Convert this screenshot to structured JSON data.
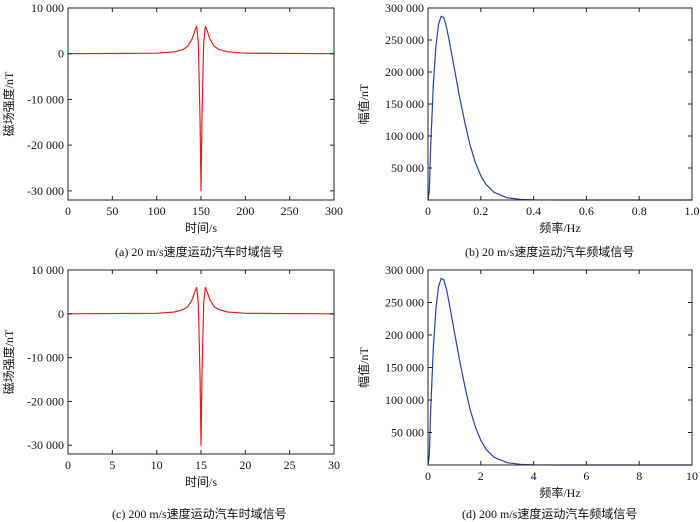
{
  "chart_data": [
    {
      "type": "line",
      "caption": "(a) 20 m/s速度运动汽车时域信号",
      "xlabel": "时间/s",
      "ylabel": "磁场强度/nT",
      "xlim": [
        0,
        300
      ],
      "ylim": [
        -32000,
        10000
      ],
      "xticks": [
        0,
        50,
        100,
        150,
        200,
        250,
        300
      ],
      "xtick_labels": [
        "0",
        "50",
        "100",
        "150",
        "200",
        "250",
        "300"
      ],
      "yticks": [
        10000,
        0,
        -10000,
        -20000,
        -30000
      ],
      "ytick_labels": [
        "10 000",
        "0",
        "-10 000",
        "-20 000",
        "-30 000"
      ],
      "grid": false,
      "color": "#e02020",
      "series": [
        {
          "x": [
            0,
            100,
            120,
            130,
            135,
            140,
            143,
            145,
            147,
            149,
            150,
            151,
            153,
            155,
            157,
            160,
            165,
            170,
            180,
            200,
            300
          ],
          "y": [
            0,
            120,
            420,
            950,
            1600,
            3200,
            5000,
            6000,
            2500,
            -15000,
            -30000,
            -15000,
            2500,
            6000,
            5000,
            3200,
            1600,
            950,
            420,
            120,
            0
          ]
        }
      ]
    },
    {
      "type": "line",
      "caption": "(b) 20 m/s速度运动汽车频域信号",
      "xlabel": "频率/Hz",
      "ylabel": "幅值/nT",
      "xlim": [
        0,
        1.0
      ],
      "ylim": [
        0,
        300000
      ],
      "xticks": [
        0,
        0.2,
        0.4,
        0.6,
        0.8,
        1.0
      ],
      "xtick_labels": [
        "0",
        "0.2",
        "0.4",
        "0.6",
        "0.8",
        "1.0"
      ],
      "yticks": [
        0,
        50000,
        100000,
        150000,
        200000,
        250000,
        300000
      ],
      "ytick_labels": [
        "",
        "50 000",
        "100 000",
        "150 000",
        "200 000",
        "250 000",
        "300 000"
      ],
      "grid": false,
      "color": "#2a3fa0",
      "series": [
        {
          "x": [
            0,
            0.005,
            0.01,
            0.02,
            0.03,
            0.04,
            0.05,
            0.06,
            0.07,
            0.08,
            0.1,
            0.12,
            0.14,
            0.16,
            0.18,
            0.2,
            0.22,
            0.25,
            0.3,
            0.35,
            0.4,
            0.5,
            0.6,
            0.8,
            1.0
          ],
          "y": [
            0,
            15000,
            80000,
            180000,
            240000,
            275000,
            287000,
            285000,
            270000,
            250000,
            205000,
            160000,
            120000,
            85000,
            58000,
            38000,
            24000,
            12000,
            3500,
            1000,
            300,
            50,
            0,
            0,
            0
          ]
        }
      ]
    },
    {
      "type": "line",
      "caption": "(c) 200 m/s速度运动汽车时域信号",
      "xlabel": "时间/s",
      "ylabel": "磁场强度/nT",
      "xlim": [
        0,
        30
      ],
      "ylim": [
        -32000,
        10000
      ],
      "xticks": [
        0,
        5,
        10,
        15,
        20,
        25,
        30
      ],
      "xtick_labels": [
        "0",
        "5",
        "10",
        "15",
        "20",
        "25",
        "30"
      ],
      "yticks": [
        10000,
        0,
        -10000,
        -20000,
        -30000
      ],
      "ytick_labels": [
        "10 000",
        "0",
        "-10 000",
        "-20 000",
        "-30 000"
      ],
      "grid": false,
      "color": "#e02020",
      "series": [
        {
          "x": [
            0,
            10,
            12,
            13,
            13.5,
            14,
            14.3,
            14.5,
            14.7,
            14.9,
            15,
            15.1,
            15.3,
            15.5,
            15.7,
            16,
            16.5,
            17,
            18,
            20,
            30
          ],
          "y": [
            0,
            120,
            420,
            950,
            1600,
            3200,
            5000,
            6000,
            2500,
            -15000,
            -30000,
            -15000,
            2500,
            6000,
            5000,
            3200,
            1600,
            950,
            420,
            120,
            0
          ]
        }
      ]
    },
    {
      "type": "line",
      "caption": "(d) 200 m/s速度运动汽车频域信号",
      "xlabel": "频率/Hz",
      "ylabel": "幅值/nT",
      "xlim": [
        0,
        10
      ],
      "ylim": [
        0,
        300000
      ],
      "xticks": [
        0,
        2,
        4,
        6,
        8,
        10
      ],
      "xtick_labels": [
        "0",
        "2",
        "4",
        "6",
        "8",
        "10"
      ],
      "yticks": [
        0,
        50000,
        100000,
        150000,
        200000,
        250000,
        300000
      ],
      "ytick_labels": [
        "",
        "50 000",
        "100 000",
        "150 000",
        "200 000",
        "250 000",
        "300 000"
      ],
      "grid": false,
      "color": "#2a3fa0",
      "series": [
        {
          "x": [
            0,
            0.05,
            0.1,
            0.2,
            0.3,
            0.4,
            0.5,
            0.6,
            0.7,
            0.8,
            1.0,
            1.2,
            1.4,
            1.6,
            1.8,
            2.0,
            2.2,
            2.5,
            3.0,
            3.5,
            4.0,
            5.0,
            6.0,
            8.0,
            10.0
          ],
          "y": [
            0,
            15000,
            80000,
            180000,
            240000,
            275000,
            287000,
            285000,
            270000,
            250000,
            205000,
            160000,
            120000,
            85000,
            58000,
            38000,
            24000,
            12000,
            3500,
            1000,
            300,
            50,
            0,
            0,
            0
          ]
        }
      ]
    }
  ]
}
